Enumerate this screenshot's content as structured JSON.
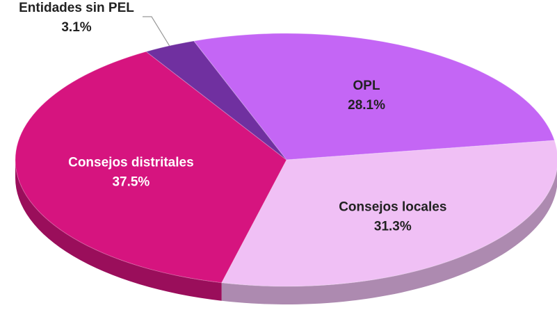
{
  "chart_data": {
    "type": "pie",
    "categories": [
      "OPL",
      "Consejos locales",
      "Consejos distritales",
      "Entidades sin PEL"
    ],
    "values": [
      28.1,
      31.3,
      37.5,
      3.1
    ],
    "value_labels": [
      "28.1%",
      "31.3%",
      "37.5%",
      "3.1%"
    ],
    "colors": [
      "#c466f5",
      "#f0c0f5",
      "#d6147f",
      "#7030a0"
    ]
  }
}
